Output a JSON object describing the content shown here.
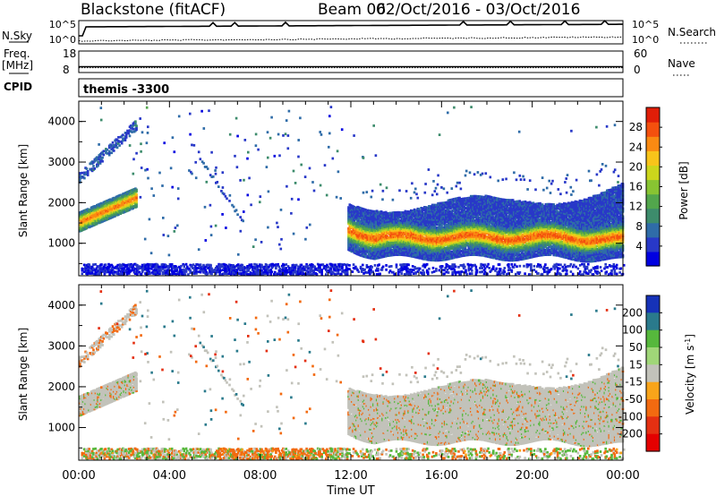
{
  "header": {
    "station": "Blackstone (fitACF)",
    "beam": "Beam 06",
    "date_range": "02/Oct/2016 - 03/Oct/2016"
  },
  "chart_data": [
    {
      "type": "line",
      "panel": "sky-search",
      "left_label": "N.Sky",
      "right_label": "N.Search",
      "left_ticks": [
        "10^5",
        "10^0"
      ],
      "right_ticks": [
        "10^5",
        "10^0"
      ],
      "series": [
        {
          "name": "N.Sky",
          "style": "solid"
        },
        {
          "name": "N.Search",
          "style": "dotted"
        }
      ]
    },
    {
      "type": "line",
      "panel": "freq-nave",
      "left_label": "Freq.",
      "left_unit": "[MHz]",
      "right_label": "Nave",
      "left_ticks": [
        "18",
        "8"
      ],
      "right_ticks": [
        "60",
        "0"
      ],
      "ylim_left": [
        8,
        18
      ],
      "ylim_right": [
        0,
        60
      ],
      "freq_mhz": 10.5,
      "series": [
        {
          "name": "Freq.",
          "style": "solid"
        },
        {
          "name": "Nave",
          "style": "dotted"
        }
      ]
    },
    {
      "type": "table",
      "panel": "cpid",
      "label": "CPID",
      "value": "themis -3300"
    },
    {
      "type": "heatmap",
      "panel": "power",
      "ylabel": "Slant Range [km]",
      "yticks": [
        1000,
        2000,
        3000,
        4000
      ],
      "ylim": [
        200,
        4500
      ],
      "xlim_hours": [
        0,
        24
      ],
      "colorbar": {
        "label": "Power [dB]",
        "ticks": [
          4,
          8,
          12,
          16,
          20,
          24,
          28
        ],
        "range": [
          0,
          32
        ],
        "colors": [
          "#0000e0",
          "#2838c8",
          "#2f6ca8",
          "#3d8c6c",
          "#52a64c",
          "#88c432",
          "#ccd61c",
          "#f8c41a",
          "#fa8a12",
          "#f4500e",
          "#e01e08"
        ]
      }
    },
    {
      "type": "heatmap",
      "panel": "velocity",
      "ylabel": "Slant Range [km]",
      "yticks": [
        1000,
        2000,
        3000,
        4000
      ],
      "ylim": [
        200,
        4500
      ],
      "xlim_hours": [
        0,
        24
      ],
      "xlabel": "Time UT",
      "xticks": [
        "00:00",
        "04:00",
        "08:00",
        "12:00",
        "16:00",
        "20:00",
        "00:00"
      ],
      "colorbar": {
        "label": "Velocity",
        "unit": "[m s",
        "unit_exp": "-1",
        "unit_end": "]",
        "ticks": [
          "200",
          "100",
          "50",
          "15",
          "-15",
          "-50",
          "-100",
          "-200"
        ],
        "colors": [
          "#1632b8",
          "#2a7a8c",
          "#56b83c",
          "#a0d678",
          "#c2c2ba",
          "#f8a41a",
          "#f26a10",
          "#e43012",
          "#e40000"
        ]
      }
    }
  ]
}
